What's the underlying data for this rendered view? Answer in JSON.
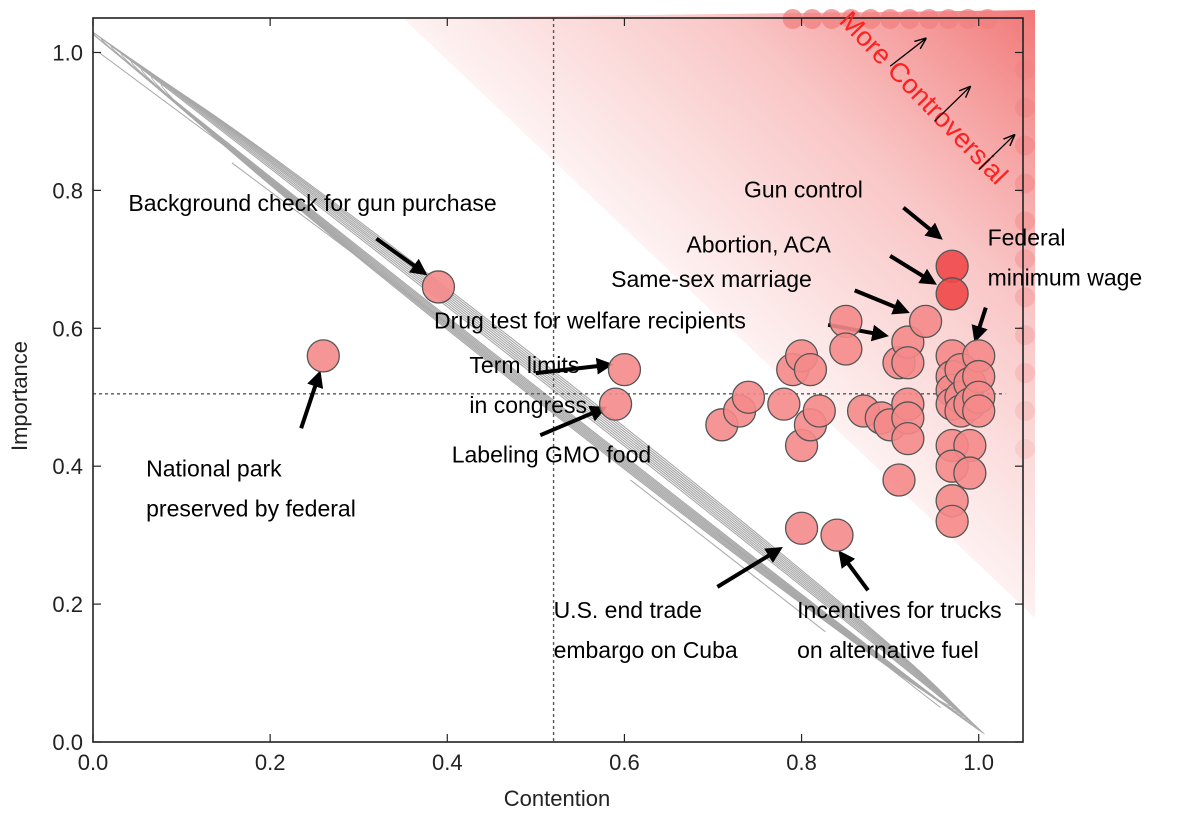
{
  "chart_data": {
    "type": "scatter",
    "title": "",
    "xlabel": "Contention",
    "ylabel": "Importance",
    "xlim": [
      0.0,
      1.05
    ],
    "ylim": [
      0.0,
      1.05
    ],
    "xticks": [
      "0.0",
      "0.2",
      "0.4",
      "0.6",
      "0.8",
      "1.0"
    ],
    "yticks": [
      "0.0",
      "0.2",
      "0.4",
      "0.6",
      "0.8",
      "1.0"
    ],
    "xtick_values": [
      0.0,
      0.2,
      0.4,
      0.6,
      0.8,
      1.0
    ],
    "ytick_values": [
      0.0,
      0.2,
      0.4,
      0.6,
      0.8,
      1.0
    ],
    "median_x": 0.52,
    "median_y": 0.505,
    "colors": {
      "point_fill": "#f58a8a",
      "point_fill_dark": "#f04848",
      "point_stroke": "#555555",
      "controversial": "#ff2020",
      "shade": "#f28080",
      "contour": "#a8a8a8",
      "median_line": "#555555"
    },
    "controversial_label": "More Controversial",
    "points": [
      {
        "x": 0.26,
        "y": 0.56
      },
      {
        "x": 0.39,
        "y": 0.66
      },
      {
        "x": 0.6,
        "y": 0.54
      },
      {
        "x": 0.59,
        "y": 0.49
      },
      {
        "x": 0.8,
        "y": 0.31
      },
      {
        "x": 0.84,
        "y": 0.3
      },
      {
        "x": 0.71,
        "y": 0.46
      },
      {
        "x": 0.73,
        "y": 0.48
      },
      {
        "x": 0.74,
        "y": 0.5
      },
      {
        "x": 0.78,
        "y": 0.49
      },
      {
        "x": 0.79,
        "y": 0.54
      },
      {
        "x": 0.8,
        "y": 0.56
      },
      {
        "x": 0.81,
        "y": 0.54
      },
      {
        "x": 0.8,
        "y": 0.43
      },
      {
        "x": 0.81,
        "y": 0.46
      },
      {
        "x": 0.82,
        "y": 0.48
      },
      {
        "x": 0.85,
        "y": 0.61
      },
      {
        "x": 0.85,
        "y": 0.57
      },
      {
        "x": 0.87,
        "y": 0.48
      },
      {
        "x": 0.89,
        "y": 0.47
      },
      {
        "x": 0.9,
        "y": 0.46
      },
      {
        "x": 0.91,
        "y": 0.55
      },
      {
        "x": 0.92,
        "y": 0.58
      },
      {
        "x": 0.92,
        "y": 0.55
      },
      {
        "x": 0.92,
        "y": 0.49
      },
      {
        "x": 0.92,
        "y": 0.47
      },
      {
        "x": 0.92,
        "y": 0.44
      },
      {
        "x": 0.91,
        "y": 0.38
      },
      {
        "x": 0.94,
        "y": 0.61
      },
      {
        "x": 0.97,
        "y": 0.69,
        "dark": true
      },
      {
        "x": 0.97,
        "y": 0.65,
        "dark": true
      },
      {
        "x": 0.97,
        "y": 0.56
      },
      {
        "x": 0.97,
        "y": 0.53
      },
      {
        "x": 0.97,
        "y": 0.51
      },
      {
        "x": 0.97,
        "y": 0.49
      },
      {
        "x": 0.98,
        "y": 0.54
      },
      {
        "x": 0.98,
        "y": 0.5
      },
      {
        "x": 0.98,
        "y": 0.48
      },
      {
        "x": 0.99,
        "y": 0.52
      },
      {
        "x": 0.99,
        "y": 0.49
      },
      {
        "x": 1.0,
        "y": 0.56
      },
      {
        "x": 1.0,
        "y": 0.53
      },
      {
        "x": 1.0,
        "y": 0.5
      },
      {
        "x": 1.0,
        "y": 0.48
      },
      {
        "x": 0.97,
        "y": 0.43
      },
      {
        "x": 0.99,
        "y": 0.43
      },
      {
        "x": 0.97,
        "y": 0.4
      },
      {
        "x": 0.99,
        "y": 0.39
      },
      {
        "x": 0.97,
        "y": 0.35
      },
      {
        "x": 0.97,
        "y": 0.32
      }
    ],
    "annotations": [
      {
        "lines": [
          "Background check for gun purchase"
        ],
        "tx": 0.04,
        "ty": 0.77,
        "anchor": "start",
        "ax0": 0.32,
        "ay0": 0.73,
        "ax1": 0.373,
        "ay1": 0.681
      },
      {
        "lines": [
          "National park",
          "preserved by federal"
        ],
        "tx": 0.06,
        "ty": 0.385,
        "anchor": "start",
        "ax0": 0.235,
        "ay0": 0.455,
        "ax1": 0.255,
        "ay1": 0.532
      },
      {
        "lines": [
          "Term limits",
          "in congress"
        ],
        "tx": 0.425,
        "ty": 0.535,
        "anchor": "start",
        "ax0": 0.5,
        "ay0": 0.535,
        "ax1": 0.582,
        "ay1": 0.547
      },
      {
        "lines": [
          "Labeling GMO food"
        ],
        "tx": 0.405,
        "ty": 0.405,
        "anchor": "start",
        "ax0": 0.505,
        "ay0": 0.445,
        "ax1": 0.575,
        "ay1": 0.483
      },
      {
        "lines": [
          "U.S. end trade",
          "embargo on Cuba"
        ],
        "tx": 0.52,
        "ty": 0.18,
        "anchor": "start",
        "ax0": 0.705,
        "ay0": 0.225,
        "ax1": 0.774,
        "ay1": 0.279
      },
      {
        "lines": [
          "Incentives for trucks",
          "on alternative fuel"
        ],
        "tx": 0.795,
        "ty": 0.18,
        "anchor": "start",
        "ax0": 0.875,
        "ay0": 0.22,
        "ax1": 0.845,
        "ay1": 0.272
      },
      {
        "lines": [
          "Drug test for welfare recipients"
        ],
        "tx": 0.385,
        "ty": 0.6,
        "anchor": "start",
        "ax0": 0.83,
        "ay0": 0.605,
        "ax1": 0.893,
        "ay1": 0.59
      },
      {
        "lines": [
          "Same-sex marriage"
        ],
        "tx": 0.585,
        "ty": 0.66,
        "anchor": "start",
        "ax0": 0.86,
        "ay0": 0.655,
        "ax1": 0.917,
        "ay1": 0.625
      },
      {
        "lines": [
          "Abortion, ACA"
        ],
        "tx": 0.67,
        "ty": 0.71,
        "anchor": "start",
        "ax0": 0.9,
        "ay0": 0.705,
        "ax1": 0.948,
        "ay1": 0.667
      },
      {
        "lines": [
          "Gun control"
        ],
        "tx": 0.735,
        "ty": 0.79,
        "anchor": "start",
        "ax0": 0.915,
        "ay0": 0.775,
        "ax1": 0.955,
        "ay1": 0.733
      },
      {
        "lines": [
          "Federal",
          "minimum wage"
        ],
        "tx": 1.01,
        "ty": 0.72,
        "anchor": "start",
        "ax0": 1.008,
        "ay0": 0.63,
        "ax1": 0.997,
        "ay1": 0.586
      }
    ]
  }
}
